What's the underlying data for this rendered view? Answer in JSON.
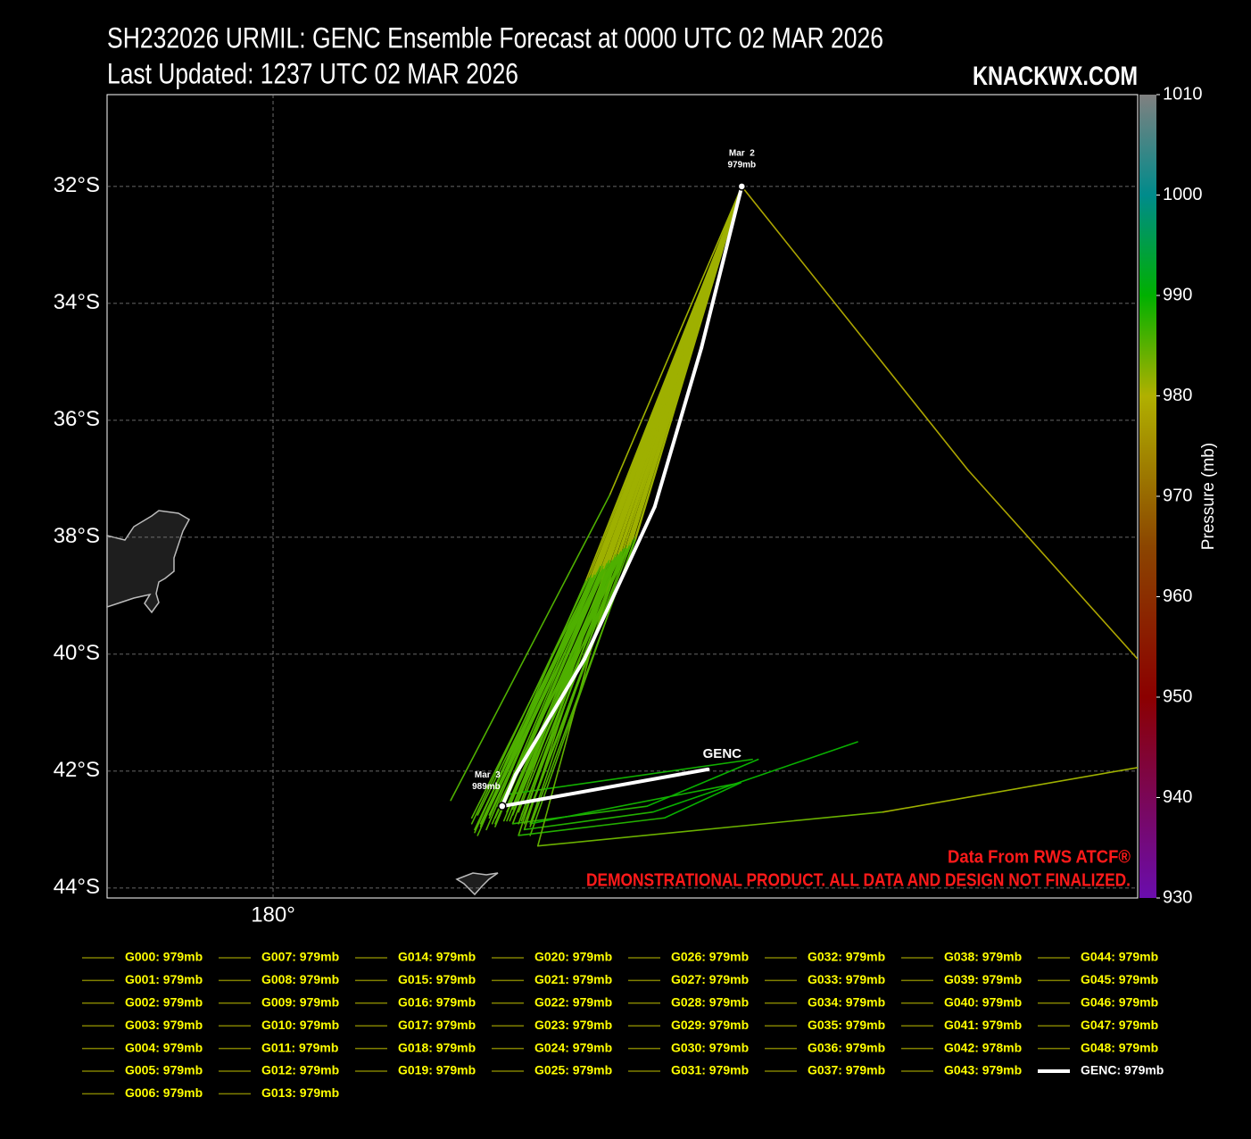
{
  "chart_data": {
    "type": "track",
    "title": "SH232026 URMIL: GENC Ensemble Forecast at 0000 UTC 02 MAR 2026",
    "subtitle": "Last Updated: 1237 UTC 02 MAR 2026",
    "watermark": "KNACKWX.COM",
    "notes": [
      "Data From RWS ATCF®",
      "DEMONSTRATIONAL PRODUCT. ALL DATA AND DESIGN NOT FINALIZED."
    ],
    "xlim": [
      177.16,
      194.794
    ],
    "xticks": [
      {
        "value": 180,
        "label": "180°"
      }
    ],
    "ylim": [
      -44.17,
      -30.43
    ],
    "yticks": [
      {
        "value": -32,
        "label": "32°S"
      },
      {
        "value": -34,
        "label": "34°S"
      },
      {
        "value": -36,
        "label": "36°S"
      },
      {
        "value": -38,
        "label": "38°S"
      },
      {
        "value": -40,
        "label": "40°S"
      },
      {
        "value": -42,
        "label": "42°S"
      },
      {
        "value": -44,
        "label": "44°S"
      }
    ],
    "grid": true,
    "colorbar": {
      "label": "Pressure (mb)",
      "lim": [
        930,
        1010
      ],
      "ticks": [
        930,
        940,
        950,
        960,
        970,
        980,
        990,
        1000,
        1010
      ],
      "stops": [
        [
          930,
          "#6a0dad"
        ],
        [
          950,
          "#8b0000"
        ],
        [
          965,
          "#8b4500"
        ],
        [
          980,
          "#b0b000"
        ],
        [
          990,
          "#00b000"
        ],
        [
          1000,
          "#008b8b"
        ],
        [
          1010,
          "#808080"
        ]
      ]
    },
    "legend_text_color": "#ffff00",
    "points": [
      {
        "date": "Mar  2",
        "pressure": "979mb",
        "x": 188.02,
        "y": -32.0
      },
      {
        "date": "Mar  3",
        "pressure": "989mb",
        "x": 183.92,
        "y": -42.6
      }
    ],
    "track_label": {
      "text": "GENC",
      "x": 187.44,
      "y": -41.97
    },
    "series": [
      {
        "name": "G000: 979mb",
        "color": "#808000",
        "x": [
          188.02,
          185.9,
          184.0
        ],
        "values": [
          -32,
          -38.3,
          -42.6
        ],
        "pressure": [
          979,
          983,
          988
        ]
      },
      {
        "name": "G001: 979mb",
        "color": "#808000",
        "x": [
          188.02,
          185.7,
          183.8
        ],
        "values": [
          -32,
          -38.5,
          -42.9
        ],
        "pressure": [
          979,
          983,
          988
        ]
      },
      {
        "name": "G002: 979mb",
        "color": "#808000",
        "x": [
          188.02,
          185.5,
          183.5
        ],
        "values": [
          -32,
          -38.6,
          -43.1
        ],
        "pressure": [
          979,
          983,
          988
        ]
      },
      {
        "name": "G003: 979mb",
        "color": "#808000",
        "x": [
          188.02,
          186.0,
          184.2
        ],
        "values": [
          -32,
          -38.2,
          -42.7
        ],
        "pressure": [
          979,
          983,
          988
        ]
      },
      {
        "name": "G004: 979mb",
        "color": "#808000",
        "x": [
          188.02,
          185.8,
          184.1,
          186.4,
          188.3
        ],
        "values": [
          -32,
          -38.4,
          -42.9,
          -42.6,
          -41.8
        ],
        "pressure": [
          979,
          983,
          987,
          989,
          990
        ]
      },
      {
        "name": "G005: 979mb",
        "color": "#808000",
        "x": [
          188.02,
          185.6,
          183.6
        ],
        "values": [
          -32,
          -38.5,
          -42.7
        ],
        "pressure": [
          979,
          983,
          988
        ]
      },
      {
        "name": "G006: 979mb",
        "color": "#808000",
        "x": [
          188.02,
          186.2,
          184.4
        ],
        "values": [
          -32,
          -38.0,
          -43.1
        ],
        "pressure": [
          979,
          983,
          988
        ]
      },
      {
        "name": "G007: 979mb",
        "color": "#808000",
        "x": [
          188.02,
          185.4,
          183.4
        ],
        "values": [
          -32,
          -38.7,
          -42.9
        ],
        "pressure": [
          979,
          983,
          988
        ]
      },
      {
        "name": "G008: 979mb",
        "color": "#808000",
        "x": [
          188.02,
          185.8,
          184.3,
          186.5,
          190.0
        ],
        "values": [
          -32,
          -38.4,
          -43.0,
          -42.7,
          -41.5
        ],
        "pressure": [
          979,
          983,
          987,
          989,
          990
        ]
      },
      {
        "name": "G009: 979mb",
        "color": "#808000",
        "x": [
          188.02,
          186.1,
          183.9
        ],
        "values": [
          -32,
          -38.1,
          -42.5
        ],
        "pressure": [
          979,
          983,
          988
        ]
      },
      {
        "name": "G010: 979mb",
        "color": "#808000",
        "x": [
          188.02,
          185.76,
          183.04
        ],
        "values": [
          -32,
          -37.28,
          -42.5
        ],
        "pressure": [
          979,
          983,
          988
        ]
      },
      {
        "name": "G011: 979mb",
        "color": "#808000",
        "x": [
          188.02,
          185.7,
          184.0,
          188.2
        ],
        "values": [
          -32,
          -38.4,
          -42.4,
          -41.8
        ],
        "pressure": [
          979,
          983,
          988,
          990
        ]
      },
      {
        "name": "G012: 979mb",
        "color": "#808000",
        "x": [
          188.02,
          185.9,
          183.8
        ],
        "values": [
          -32,
          -38.3,
          -42.8
        ],
        "pressure": [
          979,
          983,
          988
        ]
      },
      {
        "name": "G013: 979mb",
        "color": "#808000",
        "x": [
          188.02,
          186.0,
          184.4,
          188.0
        ],
        "values": [
          -32,
          -38.2,
          -42.9,
          -42.2
        ],
        "pressure": [
          979,
          983,
          988,
          990
        ]
      },
      {
        "name": "G014: 979mb",
        "color": "#808000",
        "x": [
          188.02,
          185.6,
          183.7
        ],
        "values": [
          -32,
          -38.5,
          -42.8
        ],
        "pressure": [
          979,
          983,
          988
        ]
      },
      {
        "name": "G015: 979mb",
        "color": "#808000",
        "x": [
          188.02,
          185.85,
          184.1
        ],
        "values": [
          -32,
          -38.35,
          -42.65
        ],
        "pressure": [
          979,
          983,
          988
        ]
      },
      {
        "name": "G016: 979mb",
        "color": "#808000",
        "x": [
          188.02,
          185.45,
          183.55
        ],
        "values": [
          -32,
          -38.65,
          -42.95
        ],
        "pressure": [
          979,
          983,
          988
        ]
      },
      {
        "name": "G017: 979mb",
        "color": "#808000",
        "x": [
          188.02,
          186.05,
          184.25
        ],
        "values": [
          -32,
          -38.15,
          -42.75
        ],
        "pressure": [
          979,
          983,
          988
        ]
      },
      {
        "name": "G018: 979mb",
        "color": "#808000",
        "x": [
          188.02,
          185.75,
          183.95
        ],
        "values": [
          -32,
          -38.45,
          -42.85
        ],
        "pressure": [
          979,
          983,
          988
        ]
      },
      {
        "name": "G019: 979mb",
        "color": "#808000",
        "x": [
          188.02,
          185.55,
          183.65
        ],
        "values": [
          -32,
          -38.55,
          -43.0
        ],
        "pressure": [
          979,
          983,
          988
        ]
      },
      {
        "name": "G020: 979mb",
        "color": "#808000",
        "x": [
          188.02,
          185.95,
          184.05
        ],
        "values": [
          -32,
          -38.25,
          -42.55
        ],
        "pressure": [
          979,
          983,
          988
        ]
      },
      {
        "name": "G021: 979mb",
        "color": "#808000",
        "x": [
          188.02,
          185.65,
          183.75
        ],
        "values": [
          -32,
          -38.45,
          -42.9
        ],
        "pressure": [
          979,
          983,
          988
        ]
      },
      {
        "name": "G022: 979mb",
        "color": "#808000",
        "x": [
          188.02,
          186.15,
          184.35
        ],
        "values": [
          -32,
          -38.05,
          -42.8
        ],
        "pressure": [
          979,
          983,
          988
        ]
      },
      {
        "name": "G023: 979mb",
        "color": "#808000",
        "x": [
          188.02,
          185.35,
          183.45
        ],
        "values": [
          -32,
          -38.75,
          -43.05
        ],
        "pressure": [
          979,
          983,
          988
        ]
      },
      {
        "name": "G024: 979mb",
        "color": "#808000",
        "x": [
          188.02,
          185.8,
          183.9
        ],
        "values": [
          -32,
          -38.4,
          -42.7
        ],
        "pressure": [
          979,
          983,
          988
        ]
      },
      {
        "name": "G025: 979mb",
        "color": "#808000",
        "x": [
          188.02,
          185.7,
          184.2,
          186.7,
          188.0
        ],
        "values": [
          -32,
          -38.5,
          -43.1,
          -42.8,
          -42.2
        ],
        "pressure": [
          979,
          983,
          987,
          989,
          990
        ]
      },
      {
        "name": "G026: 979mb",
        "color": "#808000",
        "x": [
          188.02,
          186.0,
          183.85
        ],
        "values": [
          -32,
          -38.2,
          -42.6
        ],
        "pressure": [
          979,
          983,
          988
        ]
      },
      {
        "name": "G027: 979mb",
        "color": "#808000",
        "x": [
          188.02,
          185.6,
          183.6
        ],
        "values": [
          -32,
          -38.6,
          -42.85
        ],
        "pressure": [
          979,
          983,
          988
        ]
      },
      {
        "name": "G028: 979mb",
        "color": "#808000",
        "x": [
          188.02,
          186.1,
          184.3
        ],
        "values": [
          -32,
          -38.1,
          -42.9
        ],
        "pressure": [
          979,
          983,
          988
        ]
      },
      {
        "name": "G029: 979mb",
        "color": "#808000",
        "x": [
          188.02,
          185.5,
          183.5
        ],
        "values": [
          -32,
          -38.7,
          -42.75
        ],
        "pressure": [
          979,
          983,
          988
        ]
      },
      {
        "name": "G030: 979mb",
        "color": "#808000",
        "x": [
          188.02,
          185.8,
          184.53,
          190.44,
          194.79
        ],
        "values": [
          -32,
          -38.6,
          -43.28,
          -42.7,
          -41.94
        ],
        "pressure": [
          979,
          983,
          986,
          982,
          980
        ]
      },
      {
        "name": "G031: 979mb",
        "color": "#808000",
        "x": [
          188.02,
          185.9,
          184.0
        ],
        "values": [
          -32,
          -38.35,
          -42.7
        ],
        "pressure": [
          979,
          983,
          988
        ]
      },
      {
        "name": "G032: 979mb",
        "color": "#808000",
        "x": [
          188.02,
          185.65,
          183.8
        ],
        "values": [
          -32,
          -38.5,
          -42.95
        ],
        "pressure": [
          979,
          983,
          988
        ]
      },
      {
        "name": "G033: 979mb",
        "color": "#808000",
        "x": [
          188.02,
          186.05,
          184.15
        ],
        "values": [
          -32,
          -38.2,
          -42.6
        ],
        "pressure": [
          979,
          983,
          988
        ]
      },
      {
        "name": "G034: 979mb",
        "color": "#808000",
        "x": [
          188.02,
          185.45,
          183.4
        ],
        "values": [
          -32,
          -38.7,
          -42.8
        ],
        "pressure": [
          979,
          983,
          988
        ]
      },
      {
        "name": "G035: 979mb",
        "color": "#808000",
        "x": [
          188.02,
          185.85,
          184.05
        ],
        "values": [
          -32,
          -38.3,
          -42.85
        ],
        "pressure": [
          979,
          983,
          988
        ]
      },
      {
        "name": "G036: 979mb",
        "color": "#808000",
        "x": [
          188.02,
          185.75,
          183.7
        ],
        "values": [
          -32,
          -38.4,
          -42.65
        ],
        "pressure": [
          979,
          983,
          988
        ]
      },
      {
        "name": "G037: 979mb",
        "color": "#808000",
        "x": [
          188.02,
          186.2,
          184.4
        ],
        "values": [
          -32,
          -38.05,
          -42.95
        ],
        "pressure": [
          979,
          983,
          988
        ]
      },
      {
        "name": "G038: 979mb",
        "color": "#808000",
        "x": [
          188.02,
          185.55,
          183.55
        ],
        "values": [
          -32,
          -38.6,
          -42.9
        ],
        "pressure": [
          979,
          983,
          988
        ]
      },
      {
        "name": "G039: 979mb",
        "color": "#808000",
        "x": [
          188.02,
          185.95,
          184.1
        ],
        "values": [
          -32,
          -38.25,
          -42.75
        ],
        "pressure": [
          979,
          983,
          988
        ]
      },
      {
        "name": "G040: 979mb",
        "color": "#808000",
        "x": [
          188.02,
          185.6,
          183.65
        ],
        "values": [
          -32,
          -38.5,
          -42.7
        ],
        "pressure": [
          979,
          983,
          988
        ]
      },
      {
        "name": "G041: 979mb",
        "color": "#808000",
        "x": [
          188.02,
          186.0,
          184.25
        ],
        "values": [
          -32,
          -38.2,
          -42.85
        ],
        "pressure": [
          979,
          983,
          988
        ]
      },
      {
        "name": "G042: 978mb",
        "color": "#808000",
        "x": [
          188.02,
          191.89,
          194.79
        ],
        "values": [
          -32,
          -36.85,
          -40.08
        ],
        "pressure": [
          979,
          978,
          979
        ]
      },
      {
        "name": "G043: 979mb",
        "color": "#808000",
        "x": [
          188.02,
          185.7,
          183.85
        ],
        "values": [
          -32,
          -38.45,
          -42.8
        ],
        "pressure": [
          979,
          983,
          988
        ]
      },
      {
        "name": "G044: 979mb",
        "color": "#808000",
        "x": [
          188.02,
          185.5,
          183.45
        ],
        "values": [
          -32,
          -38.65,
          -43.0
        ],
        "pressure": [
          979,
          983,
          988
        ]
      },
      {
        "name": "G045: 979mb",
        "color": "#808000",
        "x": [
          188.02,
          185.9,
          184.2
        ],
        "values": [
          -32,
          -38.3,
          -42.9
        ],
        "pressure": [
          979,
          983,
          988
        ]
      },
      {
        "name": "G046: 979mb",
        "color": "#808000",
        "x": [
          188.02,
          186.1,
          184.0
        ],
        "values": [
          -32,
          -38.15,
          -42.6
        ],
        "pressure": [
          979,
          983,
          988
        ]
      },
      {
        "name": "G047: 979mb",
        "color": "#808000",
        "x": [
          188.02,
          185.65,
          183.7
        ],
        "values": [
          -32,
          -38.55,
          -42.75
        ],
        "pressure": [
          979,
          983,
          988
        ]
      },
      {
        "name": "G048: 979mb",
        "color": "#808000",
        "x": [
          188.02,
          185.8,
          184.0
        ],
        "values": [
          -32,
          -38.4,
          -42.85
        ],
        "pressure": [
          979,
          983,
          988
        ]
      },
      {
        "name": "GENC: 979mb",
        "color": "#ffffff",
        "x": [
          188.02,
          187.33,
          186.53,
          185.33,
          184.15,
          183.92,
          187.44
        ],
        "values": [
          -32,
          -34.76,
          -37.48,
          -40.08,
          -42.06,
          -42.6,
          -41.97
        ]
      }
    ]
  }
}
